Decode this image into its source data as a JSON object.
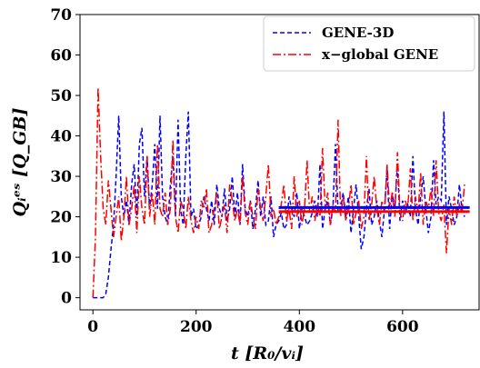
{
  "chart_data": {
    "type": "line",
    "xlabel": "t [R₀/vᵢ]",
    "ylabel": "Qᵢᵉˢ [Q_GB]",
    "xlim": [
      -25,
      750
    ],
    "ylim": [
      -3,
      70
    ],
    "xticks": [
      0,
      200,
      400,
      600
    ],
    "yticks": [
      0,
      10,
      20,
      30,
      40,
      50,
      60,
      70
    ],
    "grid": false,
    "legend_position": "top-right",
    "series": [
      {
        "name": "GENE-3D",
        "color": "#0000ff",
        "linestyle": "dashed",
        "mean": 22.3,
        "mean_range": [
          360,
          730
        ],
        "x": [
          0,
          10,
          20,
          25,
          30,
          35,
          40,
          45,
          50,
          55,
          60,
          65,
          70,
          75,
          80,
          85,
          90,
          95,
          100,
          105,
          110,
          115,
          120,
          125,
          130,
          135,
          140,
          145,
          150,
          155,
          160,
          165,
          170,
          175,
          180,
          185,
          190,
          195,
          200,
          205,
          210,
          215,
          220,
          225,
          230,
          235,
          240,
          245,
          250,
          255,
          260,
          265,
          270,
          275,
          280,
          285,
          290,
          295,
          300,
          305,
          310,
          315,
          320,
          325,
          330,
          335,
          340,
          345,
          350,
          355,
          360,
          365,
          370,
          375,
          380,
          385,
          390,
          395,
          400,
          405,
          410,
          415,
          420,
          425,
          430,
          435,
          440,
          445,
          450,
          455,
          460,
          465,
          470,
          475,
          480,
          485,
          490,
          495,
          500,
          505,
          510,
          515,
          520,
          525,
          530,
          535,
          540,
          545,
          550,
          555,
          560,
          565,
          570,
          575,
          580,
          585,
          590,
          595,
          600,
          605,
          610,
          615,
          620,
          625,
          630,
          635,
          640,
          645,
          650,
          655,
          660,
          665,
          670,
          675,
          680,
          685,
          690,
          695,
          700,
          705,
          710,
          715,
          720
        ],
        "y": [
          0,
          0,
          0,
          1,
          5,
          12,
          18,
          30,
          45,
          25,
          20,
          24,
          18,
          28,
          33,
          20,
          38,
          42,
          25,
          35,
          22,
          28,
          38,
          22,
          45,
          25,
          20,
          18,
          28,
          35,
          20,
          44,
          22,
          18,
          35,
          46,
          20,
          22,
          17,
          18,
          20,
          25,
          22,
          19,
          24,
          18,
          28,
          22,
          20,
          27,
          19,
          22,
          30,
          20,
          26,
          18,
          33,
          22,
          20,
          24,
          17,
          22,
          29,
          20,
          25,
          18,
          19,
          25,
          15,
          18,
          19,
          21,
          17,
          18,
          25,
          22,
          20,
          26,
          17,
          22,
          20,
          18,
          19,
          21,
          24,
          20,
          33,
          17,
          22,
          24,
          18,
          22,
          38,
          21,
          22,
          26,
          20,
          25,
          16,
          22,
          28,
          20,
          12,
          15,
          22,
          27,
          18,
          20,
          24,
          19,
          15,
          22,
          32,
          17,
          26,
          22,
          33,
          19,
          24,
          21,
          23,
          20,
          35,
          22,
          18,
          25,
          30,
          22,
          16,
          20,
          34,
          23,
          25,
          24,
          46,
          18,
          25,
          22,
          18,
          20,
          28,
          22,
          20
        ]
      },
      {
        "name": "x−global GENE",
        "color": "#ff0000",
        "linestyle": "dashdot",
        "mean": 21.3,
        "mean_range": [
          360,
          730
        ],
        "x": [
          0,
          5,
          10,
          15,
          20,
          25,
          30,
          35,
          40,
          45,
          50,
          55,
          60,
          65,
          70,
          75,
          80,
          85,
          90,
          95,
          100,
          105,
          110,
          115,
          120,
          125,
          130,
          135,
          140,
          145,
          150,
          155,
          160,
          165,
          170,
          175,
          180,
          185,
          190,
          195,
          200,
          205,
          210,
          215,
          220,
          225,
          230,
          235,
          240,
          245,
          250,
          255,
          260,
          265,
          270,
          275,
          280,
          285,
          290,
          295,
          300,
          305,
          310,
          315,
          320,
          325,
          330,
          335,
          340,
          345,
          350,
          355,
          360,
          365,
          370,
          375,
          380,
          385,
          390,
          395,
          400,
          405,
          410,
          415,
          420,
          425,
          430,
          435,
          440,
          445,
          450,
          455,
          460,
          465,
          470,
          475,
          480,
          485,
          490,
          495,
          500,
          505,
          510,
          515,
          520,
          525,
          530,
          535,
          540,
          545,
          550,
          555,
          560,
          565,
          570,
          575,
          580,
          585,
          590,
          595,
          600,
          605,
          610,
          615,
          620,
          625,
          630,
          635,
          640,
          645,
          650,
          655,
          660,
          665,
          670,
          675,
          680,
          685,
          690,
          695,
          700,
          705,
          710,
          715,
          720
        ],
        "y": [
          0,
          15,
          52,
          35,
          22,
          18,
          29,
          22,
          15,
          20,
          25,
          14,
          20,
          30,
          18,
          22,
          28,
          16,
          30,
          22,
          18,
          35,
          20,
          26,
          18,
          38,
          22,
          20,
          26,
          18,
          22,
          39,
          20,
          16,
          24,
          22,
          17,
          25,
          19,
          16,
          20,
          17,
          24,
          22,
          27,
          16,
          18,
          22,
          26,
          17,
          20,
          23,
          16,
          28,
          24,
          19,
          22,
          18,
          30,
          21,
          18,
          24,
          20,
          17,
          27,
          22,
          19,
          25,
          33,
          20,
          22,
          18,
          20,
          23,
          28,
          19,
          22,
          17,
          30,
          20,
          24,
          18,
          22,
          34,
          21,
          25,
          19,
          23,
          20,
          37,
          22,
          26,
          18,
          23,
          21,
          44,
          20,
          25,
          19,
          22,
          28,
          18,
          21,
          24,
          17,
          20,
          35,
          19,
          23,
          30,
          22,
          18,
          24,
          21,
          33,
          22,
          26,
          20,
          36,
          21,
          19,
          24,
          22,
          32,
          19,
          25,
          21,
          31,
          18,
          24,
          22,
          27,
          20,
          34,
          21,
          19,
          23,
          11,
          22,
          18,
          25,
          20,
          23,
          21,
          28
        ]
      }
    ]
  }
}
